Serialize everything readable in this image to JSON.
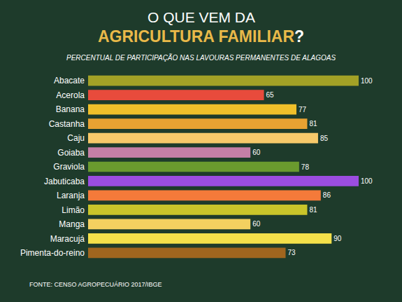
{
  "chart_data": {
    "type": "bar",
    "orientation": "horizontal",
    "title_lines": [
      "O QUE VEM DA",
      "AGRICULTURA FAMILIAR?"
    ],
    "subtitle": "PERCENTUAL DE PARTICIPAÇÃO NAS LAVOURAS PERMANENTES DE ALAGOAS",
    "source": "FONTE: CENSO AGROPECUÁRIO 2017/IBGE",
    "categories": [
      "Abacate",
      "Acerola",
      "Banana",
      "Castanha",
      "Caju",
      "Goiaba",
      "Graviola",
      "Jabuticaba",
      "Laranja",
      "Limão",
      "Manga",
      "Maracujá",
      "Pimenta-do-reino"
    ],
    "values": [
      100,
      65,
      77,
      81,
      85,
      60,
      78,
      100,
      86,
      81,
      60,
      90,
      73
    ],
    "colors": [
      "#a3a126",
      "#e84b3c",
      "#f0c02a",
      "#e8a232",
      "#f7c96a",
      "#c57fa6",
      "#6a9a2e",
      "#9b4de0",
      "#f47a3a",
      "#c9c52a",
      "#f3d060",
      "#f4e04a",
      "#a0651e"
    ],
    "xlim": [
      0,
      100
    ],
    "data_labels": true,
    "tick_labels": "y",
    "grid": false
  }
}
